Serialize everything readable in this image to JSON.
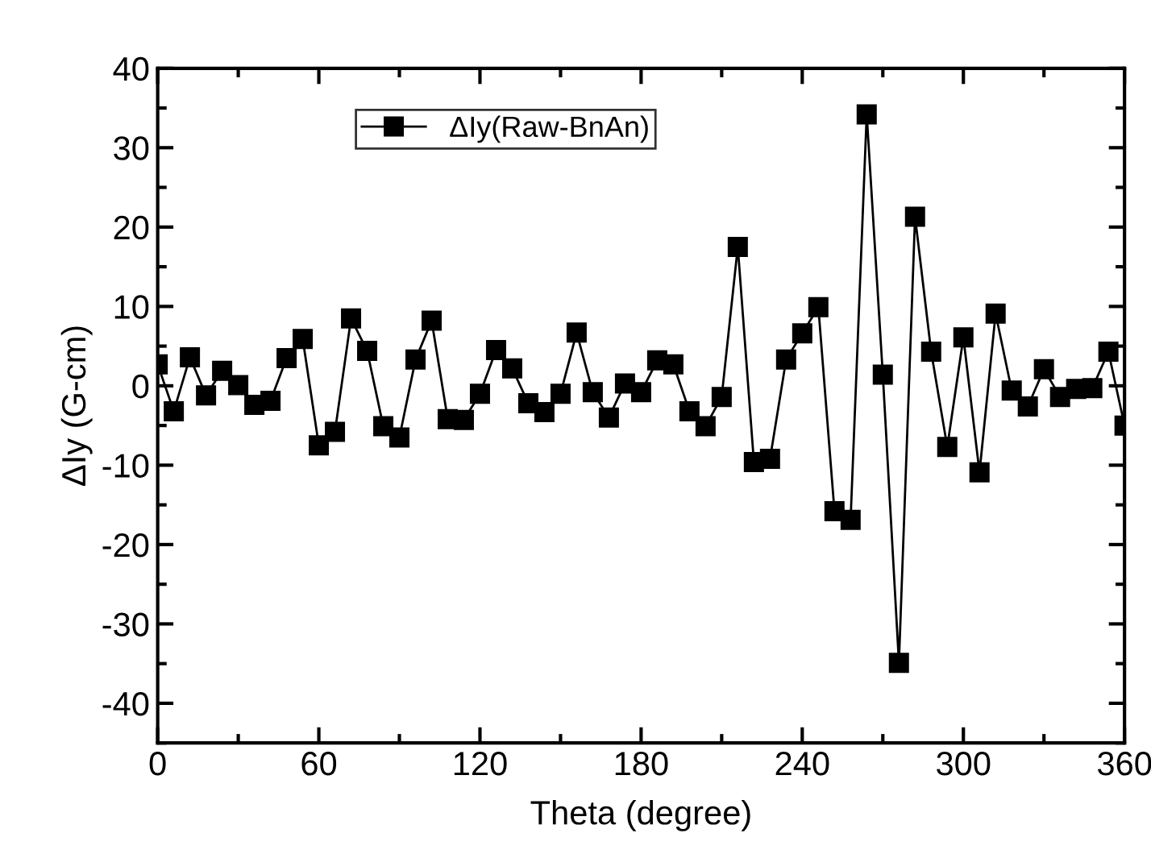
{
  "chart_data": {
    "type": "line",
    "xlabel": "Theta (degree)",
    "ylabel": "ΔIy (G-cm)",
    "x": [
      0,
      6,
      12,
      18,
      24,
      30,
      36,
      42,
      48,
      54,
      60,
      66,
      72,
      78,
      84,
      90,
      96,
      102,
      108,
      114,
      120,
      126,
      132,
      138,
      144,
      150,
      156,
      162,
      168,
      174,
      180,
      186,
      192,
      198,
      204,
      210,
      216,
      222,
      228,
      234,
      240,
      246,
      252,
      258,
      264,
      270,
      276,
      282,
      288,
      294,
      300,
      306,
      312,
      318,
      324,
      330,
      336,
      342,
      348,
      354,
      360
    ],
    "series": [
      {
        "name": "ΔIy(Raw-BnAn)",
        "color": "#000000",
        "values": [
          2.7,
          -3.2,
          3.6,
          -1.2,
          1.9,
          0.1,
          -2.4,
          -1.9,
          3.5,
          5.9,
          -7.5,
          -5.8,
          8.5,
          4.4,
          -5.1,
          -6.5,
          3.3,
          8.2,
          -4.2,
          -4.3,
          -1.0,
          4.5,
          2.2,
          -2.2,
          -3.3,
          -1.0,
          6.7,
          -0.8,
          -4.0,
          0.3,
          -0.8,
          3.2,
          2.7,
          -3.2,
          -5.1,
          -1.4,
          17.5,
          -9.6,
          -9.2,
          3.3,
          6.6,
          9.9,
          -15.8,
          -16.9,
          34.2,
          1.4,
          -34.9,
          21.3,
          4.3,
          -7.7,
          6.1,
          -10.9,
          9.1,
          -0.6,
          -2.6,
          2.1,
          -1.4,
          -0.4,
          -0.3,
          4.3,
          -5.0
        ]
      }
    ],
    "xlim": [
      0,
      360
    ],
    "xticks": [
      0,
      60,
      120,
      180,
      240,
      300,
      360
    ],
    "ylim": [
      -45,
      40
    ],
    "yticks": [
      -40,
      -30,
      -20,
      -10,
      0,
      10,
      20,
      30,
      40
    ],
    "marker": "square",
    "line_style": "solid",
    "grid": false,
    "legend": "top left"
  }
}
